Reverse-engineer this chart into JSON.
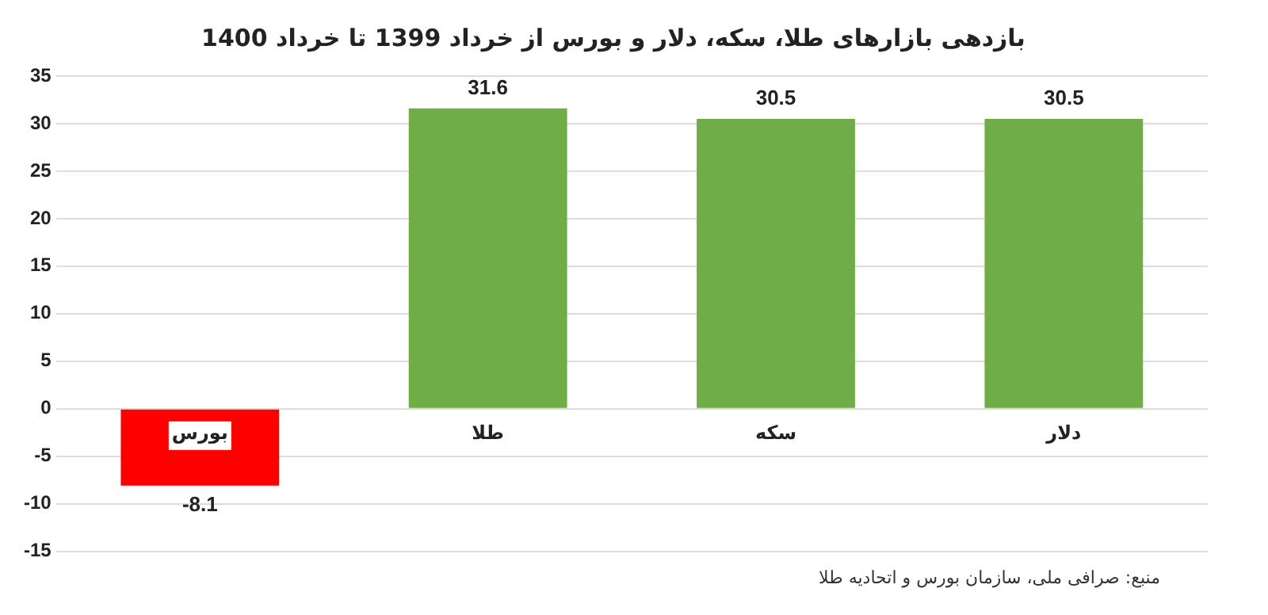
{
  "chart_data": {
    "type": "bar",
    "title": "بازدهی بازارهای طلا، سکه، دلار و بورس از خرداد 1399 تا خرداد 1400",
    "categories": [
      "بورس",
      "طلا",
      "سکه",
      "دلار"
    ],
    "values": [
      -8.1,
      31.6,
      30.5,
      30.5
    ],
    "colors": [
      "#ff0000",
      "#70ad47",
      "#70ad47",
      "#70ad47"
    ],
    "ylim": [
      -15,
      35
    ],
    "yticks": [
      -15,
      -10,
      -5,
      0,
      5,
      10,
      15,
      20,
      25,
      30,
      35
    ],
    "grid": "y",
    "data_labels": true,
    "legend": false,
    "annotations": [
      "منبع: صرافی ملی، سازمان بورس و اتحادیه طلا"
    ]
  }
}
